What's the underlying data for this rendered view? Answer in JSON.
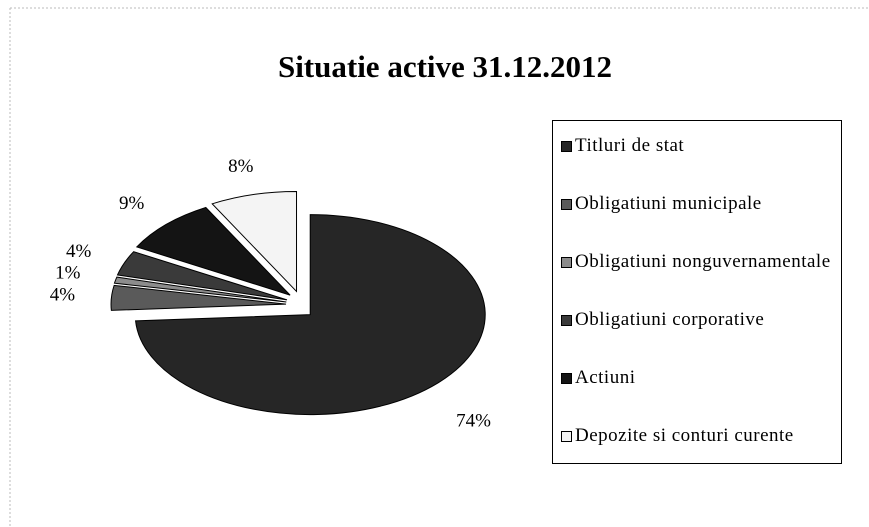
{
  "chart_data": {
    "type": "pie",
    "title": "Situatie active 31.12.2012",
    "categories": [
      "Titluri de stat",
      "Obligatiuni municipale",
      "Obligatiuni nonguvernamentale",
      "Obligatiuni corporative",
      "Actiuni",
      "Depozite si conturi curente"
    ],
    "values": [
      74,
      4,
      1,
      4,
      9,
      8
    ],
    "value_labels": [
      "74%",
      "4%",
      "1%",
      "4%",
      "9%",
      "8%"
    ],
    "colors": [
      "#262626",
      "#5a5a5a",
      "#8c8c8c",
      "#3a3a3a",
      "#141414",
      "#f4f4f4"
    ],
    "legend": "right"
  }
}
